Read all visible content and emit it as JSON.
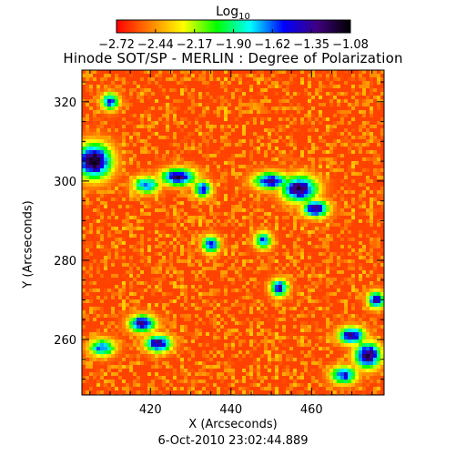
{
  "title": "Hinode SOT/SP - MERLIN : Degree of Polarization",
  "timestamp": "6-Oct-2010 23:02:44.889",
  "colorbar": {
    "title": "Log",
    "title_subscript": "10",
    "tick_labels": [
      "-2.72",
      "-2.44",
      "-2.17",
      "-1.90",
      "-1.62",
      "-1.35",
      "-1.08"
    ],
    "range": [
      -2.72,
      -1.08
    ],
    "colors": [
      "#ff0000",
      "#ff8000",
      "#ffff00",
      "#00ff00",
      "#00ffff",
      "#0000ff",
      "#400080",
      "#000000"
    ]
  },
  "chart_data": {
    "type": "heatmap",
    "title": "Hinode SOT/SP - MERLIN : Degree of Polarization",
    "xlabel": "X (Arcseconds)",
    "ylabel": "Y (Arcseconds)",
    "xlim": [
      403,
      478
    ],
    "ylim": [
      246,
      328
    ],
    "xticks": [
      420,
      440,
      460
    ],
    "yticks": [
      260,
      280,
      300,
      320
    ],
    "value_label": "Log10 degree of polarization",
    "value_range": [
      -2.72,
      -1.08
    ],
    "background_level": -2.6,
    "high_polarization_regions": [
      {
        "x": 406,
        "y": 305,
        "rx": 4,
        "ry": 4,
        "level": -1.1
      },
      {
        "x": 410,
        "y": 320,
        "rx": 2,
        "ry": 2,
        "level": -1.5
      },
      {
        "x": 419,
        "y": 299,
        "rx": 3,
        "ry": 2,
        "level": -1.6
      },
      {
        "x": 427,
        "y": 301,
        "rx": 4,
        "ry": 2,
        "level": -1.3
      },
      {
        "x": 433,
        "y": 298,
        "rx": 2,
        "ry": 2,
        "level": -1.5
      },
      {
        "x": 435,
        "y": 284,
        "rx": 2,
        "ry": 2,
        "level": -1.5
      },
      {
        "x": 450,
        "y": 300,
        "rx": 4,
        "ry": 2,
        "level": -1.4
      },
      {
        "x": 457,
        "y": 298,
        "rx": 4,
        "ry": 3,
        "level": -1.2
      },
      {
        "x": 461,
        "y": 293,
        "rx": 3,
        "ry": 2,
        "level": -1.3
      },
      {
        "x": 448,
        "y": 285,
        "rx": 2,
        "ry": 2,
        "level": -1.6
      },
      {
        "x": 452,
        "y": 273,
        "rx": 2,
        "ry": 2,
        "level": -1.4
      },
      {
        "x": 418,
        "y": 264,
        "rx": 3,
        "ry": 2,
        "level": -1.3
      },
      {
        "x": 422,
        "y": 259,
        "rx": 3,
        "ry": 2,
        "level": -1.3
      },
      {
        "x": 408,
        "y": 258,
        "rx": 3,
        "ry": 2,
        "level": -1.6
      },
      {
        "x": 470,
        "y": 261,
        "rx": 3,
        "ry": 2,
        "level": -1.3
      },
      {
        "x": 474,
        "y": 256,
        "rx": 3,
        "ry": 3,
        "level": -1.2
      },
      {
        "x": 468,
        "y": 251,
        "rx": 3,
        "ry": 2,
        "level": -1.5
      },
      {
        "x": 476,
        "y": 270,
        "rx": 2,
        "ry": 2,
        "level": -1.4
      }
    ]
  }
}
